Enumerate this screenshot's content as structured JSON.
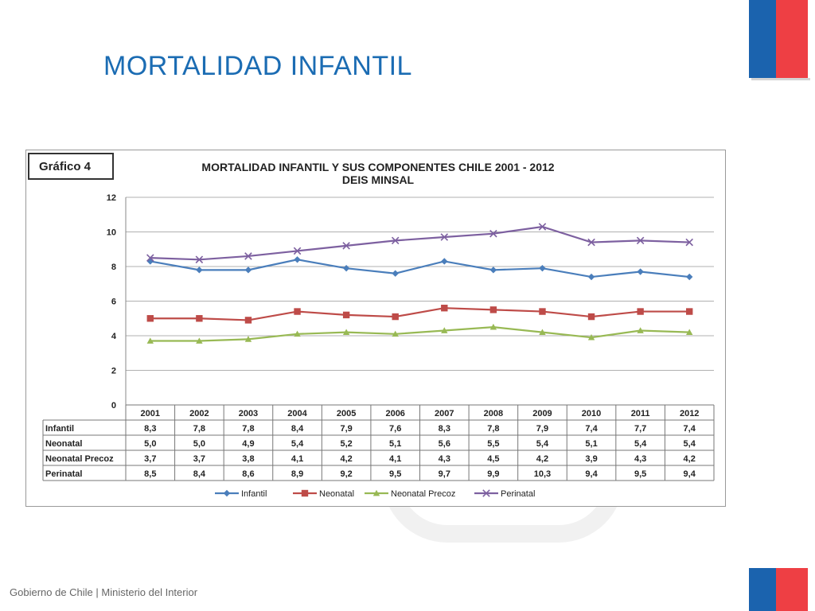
{
  "slide": {
    "title": "MORTALIDAD  INFANTIL",
    "footer": "Gobierno de Chile | Ministerio del Interior"
  },
  "colors": {
    "flag_blue": "#1b63ae",
    "flag_red": "#ee3f44",
    "title_blue": "#1b6cb3"
  },
  "chart_data": {
    "type": "line",
    "label": "Gráfico 4",
    "title": "MORTALIDAD INFANTIL Y SUS COMPONENTES  CHILE   2001 - 2012",
    "subtitle": "DEIS  MINSAL",
    "categories": [
      "2001",
      "2002",
      "2003",
      "2004",
      "2005",
      "2006",
      "2007",
      "2008",
      "2009",
      "2010",
      "2011",
      "2012"
    ],
    "ylim": [
      0,
      12
    ],
    "yticks": [
      0,
      2,
      4,
      6,
      8,
      10,
      12
    ],
    "grid": true,
    "legend_position": "bottom",
    "series": [
      {
        "name": "Infantil",
        "color": "#4a7ebb",
        "marker": "diamond",
        "values": [
          8.3,
          7.8,
          7.8,
          8.4,
          7.9,
          7.6,
          8.3,
          7.8,
          7.9,
          7.4,
          7.7,
          7.4
        ],
        "labels": [
          "8,3",
          "7,8",
          "7,8",
          "8,4",
          "7,9",
          "7,6",
          "8,3",
          "7,8",
          "7,9",
          "7,4",
          "7,7",
          "7,4"
        ]
      },
      {
        "name": "Neonatal",
        "color": "#be4b48",
        "marker": "square",
        "values": [
          5.0,
          5.0,
          4.9,
          5.4,
          5.2,
          5.1,
          5.6,
          5.5,
          5.4,
          5.1,
          5.4,
          5.4
        ],
        "labels": [
          "5,0",
          "5,0",
          "4,9",
          "5,4",
          "5,2",
          "5,1",
          "5,6",
          "5,5",
          "5,4",
          "5,1",
          "5,4",
          "5,4"
        ]
      },
      {
        "name": "Neonatal Precoz",
        "color": "#98b954",
        "marker": "triangle",
        "values": [
          3.7,
          3.7,
          3.8,
          4.1,
          4.2,
          4.1,
          4.3,
          4.5,
          4.2,
          3.9,
          4.3,
          4.2
        ],
        "labels": [
          "3,7",
          "3,7",
          "3,8",
          "4,1",
          "4,2",
          "4,1",
          "4,3",
          "4,5",
          "4,2",
          "3,9",
          "4,3",
          "4,2"
        ]
      },
      {
        "name": "Perinatal",
        "color": "#7d60a0",
        "marker": "x",
        "values": [
          8.5,
          8.4,
          8.6,
          8.9,
          9.2,
          9.5,
          9.7,
          9.9,
          10.3,
          9.4,
          9.5,
          9.4
        ],
        "labels": [
          "8,5",
          "8,4",
          "8,6",
          "8,9",
          "9,2",
          "9,5",
          "9,7",
          "9,9",
          "10,3",
          "9,4",
          "9,5",
          "9,4"
        ]
      }
    ]
  }
}
